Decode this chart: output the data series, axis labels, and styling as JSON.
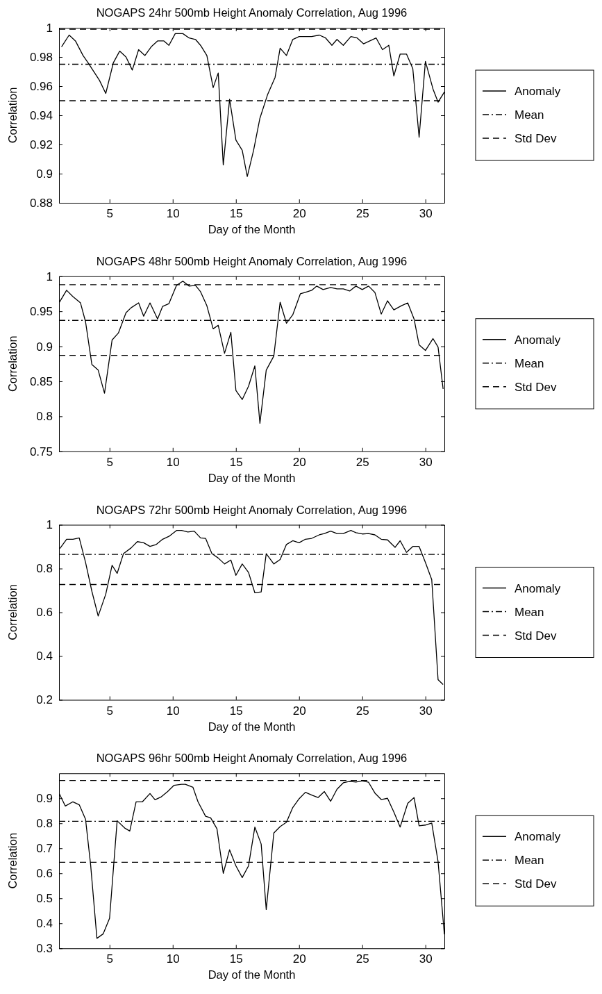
{
  "chart_data": [
    {
      "type": "line",
      "title": "NOGAPS 24hr 500mb Height Anomaly Correlation, Aug 1996",
      "xlabel": "Day of the Month",
      "ylabel": "Correlation",
      "xlim": [
        1,
        31.5
      ],
      "xticks": [
        5,
        10,
        15,
        20,
        25,
        30
      ],
      "ylim": [
        0.88,
        1
      ],
      "yticks": [
        0.88,
        0.9,
        0.92,
        0.94,
        0.96,
        0.98,
        1
      ],
      "legend": "right",
      "series": [
        {
          "name": "Anomaly",
          "color": "#000000",
          "line_style": "solid",
          "x": [
            1.2,
            1.8,
            2.3,
            2.9,
            3.3,
            4.2,
            4.7,
            5.3,
            5.8,
            6.3,
            6.8,
            7.3,
            7.8,
            8.3,
            8.8,
            9.3,
            9.7,
            10.2,
            10.8,
            11.3,
            11.8,
            12.2,
            12.7,
            13.2,
            13.6,
            14.0,
            14.5,
            15.0,
            15.5,
            15.9,
            16.4,
            16.9,
            17.5,
            18.1,
            18.5,
            19.0,
            19.5,
            20.0,
            20.6,
            21.0,
            21.6,
            22.1,
            22.6,
            23.0,
            23.5,
            24.1,
            24.6,
            25.1,
            25.6,
            26.1,
            26.6,
            27.1,
            27.5,
            28.0,
            28.5,
            29.0,
            29.5,
            30.0,
            30.6,
            31.0,
            31.5
          ],
          "values": [
            0.987,
            0.995,
            0.991,
            0.981,
            0.976,
            0.964,
            0.955,
            0.976,
            0.984,
            0.98,
            0.971,
            0.985,
            0.981,
            0.987,
            0.991,
            0.991,
            0.988,
            0.996,
            0.996,
            0.993,
            0.992,
            0.988,
            0.981,
            0.959,
            0.969,
            0.906,
            0.951,
            0.923,
            0.916,
            0.898,
            0.916,
            0.938,
            0.954,
            0.966,
            0.986,
            0.981,
            0.992,
            0.994,
            0.994,
            0.994,
            0.995,
            0.993,
            0.988,
            0.992,
            0.988,
            0.994,
            0.993,
            0.989,
            0.991,
            0.993,
            0.985,
            0.988,
            0.967,
            0.982,
            0.982,
            0.972,
            0.925,
            0.977,
            0.958,
            0.949,
            0.956
          ]
        },
        {
          "name": "Mean",
          "color": "#000000",
          "line_style": "dashdot",
          "x": [
            1,
            31.5
          ],
          "values": [
            0.975,
            0.975
          ]
        },
        {
          "name": "Std Dev",
          "color": "#000000",
          "line_style": "dashed",
          "x": [
            1,
            31.5
          ],
          "values": [
            0.999,
            0.999
          ]
        },
        {
          "color": "#000000",
          "line_style": "dashed",
          "x": [
            1,
            31.5
          ],
          "values": [
            0.95,
            0.95
          ]
        }
      ]
    },
    {
      "type": "line",
      "title": "NOGAPS 48hr 500mb Height Anomaly Correlation, Aug 1996",
      "xlabel": "Day of the Month",
      "ylabel": "Correlation",
      "xlim": [
        1,
        31.5
      ],
      "xticks": [
        5,
        10,
        15,
        20,
        25,
        30
      ],
      "ylim": [
        0.75,
        1
      ],
      "yticks": [
        0.75,
        0.8,
        0.85,
        0.9,
        0.95,
        1
      ],
      "legend": "right",
      "series": [
        {
          "name": "Anomaly",
          "color": "#000000",
          "line_style": "solid",
          "x": [
            1.0,
            1.6,
            2.1,
            2.7,
            3.1,
            3.6,
            4.1,
            4.6,
            5.2,
            5.7,
            6.3,
            6.7,
            7.3,
            7.7,
            8.2,
            8.8,
            9.2,
            9.7,
            10.3,
            10.8,
            11.3,
            11.8,
            12.2,
            12.7,
            13.2,
            13.6,
            14.1,
            14.6,
            15.0,
            15.5,
            16.0,
            16.5,
            16.9,
            17.4,
            18.0,
            18.5,
            19.0,
            19.5,
            20.1,
            20.5,
            21.0,
            21.4,
            21.9,
            22.5,
            23.0,
            23.5,
            24.0,
            24.5,
            25.0,
            25.5,
            26.0,
            26.5,
            27.0,
            27.5,
            28.1,
            28.6,
            29.1,
            29.5,
            30.0,
            30.6,
            31.0,
            31.4
          ],
          "values": [
            0.962,
            0.98,
            0.971,
            0.962,
            0.935,
            0.874,
            0.866,
            0.833,
            0.909,
            0.919,
            0.948,
            0.955,
            0.962,
            0.943,
            0.962,
            0.939,
            0.957,
            0.961,
            0.987,
            0.993,
            0.986,
            0.987,
            0.978,
            0.958,
            0.925,
            0.93,
            0.89,
            0.92,
            0.837,
            0.824,
            0.843,
            0.872,
            0.79,
            0.866,
            0.886,
            0.963,
            0.933,
            0.945,
            0.975,
            0.977,
            0.98,
            0.986,
            0.981,
            0.984,
            0.982,
            0.982,
            0.979,
            0.986,
            0.981,
            0.986,
            0.977,
            0.946,
            0.965,
            0.952,
            0.958,
            0.962,
            0.939,
            0.902,
            0.894,
            0.911,
            0.899,
            0.839
          ]
        },
        {
          "name": "Mean",
          "color": "#000000",
          "line_style": "dashdot",
          "x": [
            1,
            31.5
          ],
          "values": [
            0.937,
            0.937
          ]
        },
        {
          "name": "Std Dev",
          "color": "#000000",
          "line_style": "dashed",
          "x": [
            1,
            31.5
          ],
          "values": [
            0.988,
            0.988
          ]
        },
        {
          "color": "#000000",
          "line_style": "dashed",
          "x": [
            1,
            31.5
          ],
          "values": [
            0.887,
            0.887
          ]
        }
      ]
    },
    {
      "type": "line",
      "title": "NOGAPS 72hr 500mb Height Anomaly Correlation, Aug 1996",
      "xlabel": "Day of the Month",
      "ylabel": "Correlation",
      "xlim": [
        1,
        31.5
      ],
      "xticks": [
        5,
        10,
        15,
        20,
        25,
        30
      ],
      "ylim": [
        0.2,
        1
      ],
      "yticks": [
        0.2,
        0.4,
        0.6,
        0.8,
        1
      ],
      "legend": "right",
      "series": [
        {
          "name": "Anomaly",
          "color": "#000000",
          "line_style": "solid",
          "x": [
            1.07,
            1.6,
            2.1,
            2.6,
            3.1,
            3.6,
            4.1,
            4.7,
            5.2,
            5.6,
            6.1,
            6.7,
            7.2,
            7.7,
            8.2,
            8.7,
            9.2,
            9.7,
            10.3,
            10.7,
            11.2,
            11.7,
            12.2,
            12.6,
            13.1,
            13.6,
            14.1,
            14.6,
            15.0,
            15.5,
            16.0,
            16.5,
            17.0,
            17.4,
            18.0,
            18.5,
            19.0,
            19.5,
            20.0,
            20.5,
            21.0,
            21.6,
            22.0,
            22.5,
            23.0,
            23.5,
            24.1,
            24.5,
            25.0,
            25.5,
            26.0,
            26.5,
            27.0,
            27.6,
            28.0,
            28.5,
            29.0,
            29.5,
            30.0,
            30.5,
            31.0,
            31.4
          ],
          "values": [
            0.892,
            0.934,
            0.934,
            0.94,
            0.828,
            0.696,
            0.583,
            0.683,
            0.815,
            0.778,
            0.868,
            0.894,
            0.923,
            0.918,
            0.901,
            0.91,
            0.934,
            0.947,
            0.974,
            0.974,
            0.967,
            0.971,
            0.94,
            0.938,
            0.868,
            0.848,
            0.821,
            0.839,
            0.769,
            0.821,
            0.782,
            0.689,
            0.693,
            0.868,
            0.821,
            0.841,
            0.91,
            0.927,
            0.918,
            0.934,
            0.938,
            0.954,
            0.96,
            0.971,
            0.96,
            0.96,
            0.974,
            0.964,
            0.958,
            0.96,
            0.954,
            0.934,
            0.931,
            0.897,
            0.927,
            0.874,
            0.901,
            0.901,
            0.828,
            0.749,
            0.292,
            0.27
          ]
        },
        {
          "name": "Mean",
          "color": "#000000",
          "line_style": "dashdot",
          "x": [
            1,
            31.5
          ],
          "values": [
            0.865,
            0.865
          ]
        },
        {
          "name": "Std Dev",
          "color": "#000000",
          "line_style": "dashed",
          "x": [
            1,
            31.5
          ],
          "values": [
            0.727,
            0.727
          ]
        }
      ]
    },
    {
      "type": "line",
      "title": "NOGAPS 96hr 500mb Height Anomaly Correlation, Aug 1996",
      "xlabel": "Day of the Month",
      "ylabel": "Correlation",
      "xlim": [
        1,
        31.5
      ],
      "xticks": [
        5,
        10,
        15,
        20,
        25,
        30
      ],
      "ylim": [
        0.3,
        1
      ],
      "yticks": [
        0.3,
        0.4,
        0.5,
        0.6,
        0.7,
        0.8,
        0.9
      ],
      "legend": "right",
      "series": [
        {
          "name": "Anomaly",
          "color": "#000000",
          "line_style": "solid",
          "x": [
            1.0,
            1.5,
            2.1,
            2.6,
            3.1,
            3.5,
            4.0,
            4.5,
            5.0,
            5.6,
            6.2,
            6.6,
            7.1,
            7.6,
            8.2,
            8.6,
            9.1,
            9.6,
            10.1,
            10.7,
            11.0,
            11.6,
            12.0,
            12.6,
            13.0,
            13.5,
            14.0,
            14.5,
            15.0,
            15.5,
            16.0,
            16.5,
            17.0,
            17.4,
            18.0,
            18.5,
            19.0,
            19.5,
            20.0,
            20.5,
            21.0,
            21.5,
            22.0,
            22.5,
            23.0,
            23.5,
            24.0,
            24.5,
            25.0,
            25.5,
            26.0,
            26.5,
            27.0,
            27.5,
            28.0,
            28.6,
            29.1,
            29.5,
            30.0,
            30.5,
            31.0,
            31.5
          ],
          "values": [
            0.921,
            0.869,
            0.886,
            0.874,
            0.816,
            0.635,
            0.34,
            0.358,
            0.42,
            0.81,
            0.781,
            0.769,
            0.886,
            0.886,
            0.919,
            0.894,
            0.906,
            0.927,
            0.952,
            0.956,
            0.956,
            0.944,
            0.886,
            0.828,
            0.822,
            0.778,
            0.6,
            0.694,
            0.63,
            0.583,
            0.63,
            0.785,
            0.717,
            0.455,
            0.761,
            0.787,
            0.804,
            0.863,
            0.898,
            0.924,
            0.913,
            0.903,
            0.927,
            0.888,
            0.936,
            0.962,
            0.968,
            0.965,
            0.97,
            0.964,
            0.921,
            0.895,
            0.9,
            0.845,
            0.785,
            0.88,
            0.903,
            0.79,
            0.793,
            0.801,
            0.647,
            0.356
          ]
        },
        {
          "name": "Mean",
          "color": "#000000",
          "line_style": "dashdot",
          "x": [
            1,
            31.5
          ],
          "values": [
            0.808,
            0.808
          ]
        },
        {
          "name": "Std Dev",
          "color": "#000000",
          "line_style": "dashed",
          "x": [
            1,
            31.5
          ],
          "values": [
            0.971,
            0.971
          ]
        },
        {
          "color": "#000000",
          "line_style": "dashed",
          "x": [
            1,
            31.5
          ],
          "values": [
            0.644,
            0.644
          ]
        }
      ]
    }
  ]
}
